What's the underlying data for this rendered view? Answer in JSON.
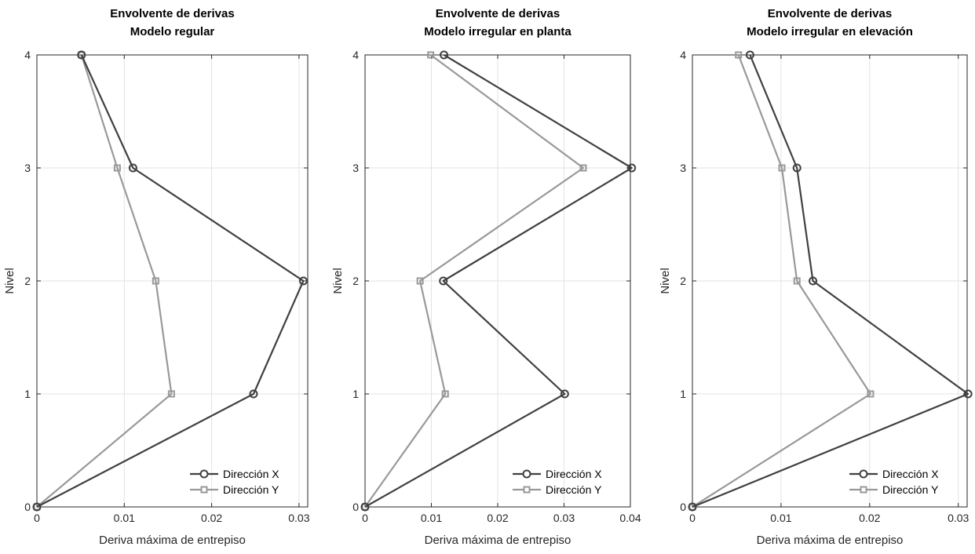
{
  "chart_data": [
    {
      "type": "line",
      "title": [
        "Envolvente de derivas",
        "Modelo regular"
      ],
      "xlabel": "Deriva máxima de entrepiso",
      "ylabel": "Nivel",
      "xlim": [
        0,
        0.031
      ],
      "ylim": [
        0,
        4
      ],
      "xticks": [
        0,
        0.01,
        0.02,
        0.03
      ],
      "xtick_labels": [
        "0",
        "0.01",
        "0.02",
        "0.03"
      ],
      "yticks": [
        0,
        1,
        2,
        3,
        4
      ],
      "ytick_labels": [
        "0",
        "1",
        "2",
        "3",
        "4"
      ],
      "grid": true,
      "legend_position": "bottom-right",
      "series": [
        {
          "name": "Dirección X",
          "x": [
            0,
            0.0248,
            0.0305,
            0.011,
            0.0051
          ],
          "y": [
            0,
            1,
            2,
            3,
            4
          ],
          "color": "#404040",
          "marker": "circle"
        },
        {
          "name": "Dirección Y",
          "x": [
            0,
            0.0154,
            0.0136,
            0.0092,
            0.0051
          ],
          "y": [
            0,
            1,
            2,
            3,
            4
          ],
          "color": "#999999",
          "marker": "square"
        }
      ]
    },
    {
      "type": "line",
      "title": [
        "Envolvente de derivas",
        "Modelo irregular en planta"
      ],
      "xlabel": "Deriva máxima de entrepiso",
      "ylabel": "Nivel",
      "xlim": [
        0,
        0.04
      ],
      "ylim": [
        0,
        4
      ],
      "xticks": [
        0,
        0.01,
        0.02,
        0.03,
        0.04
      ],
      "xtick_labels": [
        "0",
        "0.01",
        "0.02",
        "0.03",
        "0.04"
      ],
      "yticks": [
        0,
        1,
        2,
        3,
        4
      ],
      "ytick_labels": [
        "0",
        "1",
        "2",
        "3",
        "4"
      ],
      "grid": true,
      "legend_position": "bottom-right",
      "series": [
        {
          "name": "Dirección X",
          "x": [
            0,
            0.0301,
            0.0118,
            0.0402,
            0.0119
          ],
          "y": [
            0,
            1,
            2,
            3,
            4
          ],
          "color": "#404040",
          "marker": "circle"
        },
        {
          "name": "Dirección Y",
          "x": [
            0,
            0.0121,
            0.0083,
            0.0329,
            0.0099
          ],
          "y": [
            0,
            1,
            2,
            3,
            4
          ],
          "color": "#999999",
          "marker": "square"
        }
      ]
    },
    {
      "type": "line",
      "title": [
        "Envolvente de derivas",
        "Modelo irregular en elevación"
      ],
      "xlabel": "Deriva máxima de entrepiso",
      "ylabel": "Nivel",
      "xlim": [
        0,
        0.031
      ],
      "ylim": [
        0,
        4
      ],
      "xticks": [
        0,
        0.01,
        0.02,
        0.03
      ],
      "xtick_labels": [
        "0",
        "0.01",
        "0.02",
        "0.03"
      ],
      "yticks": [
        0,
        1,
        2,
        3,
        4
      ],
      "ytick_labels": [
        "0",
        "1",
        "2",
        "3",
        "4"
      ],
      "grid": true,
      "legend_position": "bottom-right",
      "series": [
        {
          "name": "Dirección X",
          "x": [
            0,
            0.0311,
            0.0136,
            0.0118,
            0.0065
          ],
          "y": [
            0,
            1,
            2,
            3,
            4
          ],
          "color": "#404040",
          "marker": "circle"
        },
        {
          "name": "Dirección Y",
          "x": [
            0,
            0.0201,
            0.0118,
            0.0101,
            0.0052
          ],
          "y": [
            0,
            1,
            2,
            3,
            4
          ],
          "color": "#999999",
          "marker": "square"
        }
      ]
    }
  ]
}
